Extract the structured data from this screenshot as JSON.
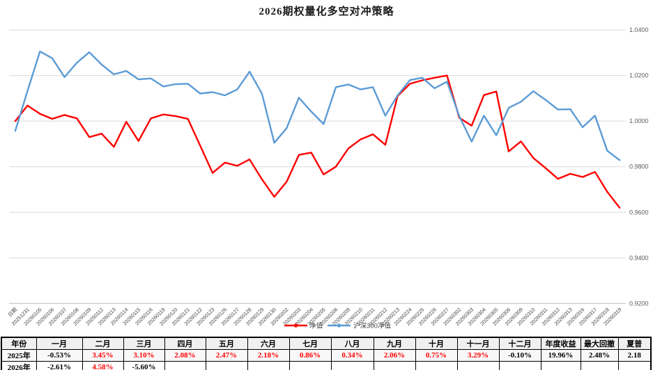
{
  "title": "2026期权量化多空对冲策略",
  "chart_data": {
    "type": "line",
    "grid": true,
    "legend_position": "bottom-center",
    "categories": [
      "日期",
      "20251231",
      "20260105",
      "20260106",
      "20260107",
      "20260108",
      "20260109",
      "20260112",
      "20260113",
      "20260114",
      "20260115",
      "20260116",
      "20260119",
      "20260120",
      "20260121",
      "20260122",
      "20260123",
      "20260126",
      "20260127",
      "20260128",
      "20260129",
      "20260130",
      "20260202",
      "20260203",
      "20260204",
      "20260205",
      "20260206",
      "20260209",
      "20260210",
      "20260211",
      "20260212",
      "20260213",
      "20260224",
      "20260225",
      "20260226",
      "20260227",
      "20260302",
      "20260303",
      "20260304",
      "20260305",
      "20260306",
      "20260309",
      "20260310",
      "20260311",
      "20260312",
      "20260313",
      "20260316",
      "20260317",
      "20260318",
      "20260319"
    ],
    "y_axis": {
      "min": 0.92,
      "max": 1.04,
      "step": 0.02,
      "tick_labels": [
        "1.0400",
        "1.0200",
        "1.0000",
        "0.9800",
        "0.9600",
        "0.9400",
        "0.9200"
      ]
    },
    "series": [
      {
        "name": "净值",
        "color": "#fe0000",
        "values": [
          1.0,
          1.0068,
          1.0032,
          1.001,
          1.0027,
          1.0012,
          0.993,
          0.9945,
          0.9887,
          0.9997,
          0.9913,
          1.0012,
          1.0029,
          1.0022,
          1.001,
          0.9892,
          0.9773,
          0.9818,
          0.9804,
          0.9832,
          0.9745,
          0.9668,
          0.9734,
          0.9852,
          0.9862,
          0.9766,
          0.98,
          0.988,
          0.992,
          0.9942,
          0.9896,
          1.011,
          1.0164,
          1.0179,
          1.019,
          1.02,
          1.0015,
          0.998,
          1.0114,
          1.013,
          0.9867,
          0.9911,
          0.9838,
          0.9794,
          0.9747,
          0.9769,
          0.9755,
          0.9777,
          0.969,
          0.962
        ]
      },
      {
        "name": "沪深300净值",
        "color": "#5b9bd5",
        "values": [
          0.9957,
          1.0133,
          1.0305,
          1.0276,
          1.0193,
          1.0256,
          1.0302,
          1.0248,
          1.0205,
          1.022,
          1.0183,
          1.0187,
          1.0152,
          1.0162,
          1.0164,
          1.0121,
          1.0127,
          1.0113,
          1.0139,
          1.0217,
          1.0121,
          0.9905,
          0.9969,
          1.0103,
          1.0042,
          0.9987,
          1.0149,
          1.0161,
          1.0139,
          1.0149,
          1.0024,
          1.0113,
          1.018,
          1.019,
          1.0144,
          1.0173,
          1.0022,
          0.991,
          1.0024,
          0.9938,
          1.0058,
          1.0085,
          1.0131,
          1.0093,
          1.0051,
          1.0052,
          0.9973,
          1.0024,
          0.987,
          0.9829
        ]
      }
    ]
  },
  "table": {
    "headers": [
      "年份",
      "一月",
      "二月",
      "三月",
      "四月",
      "五月",
      "六月",
      "七月",
      "八月",
      "九月",
      "十月",
      "十一月",
      "十二月",
      "年度收益",
      "最大回撤",
      "夏普"
    ],
    "rows": [
      {
        "year": "2025年",
        "cells": [
          {
            "t": "-0.53%",
            "red": false
          },
          {
            "t": "3.45%",
            "red": true
          },
          {
            "t": "3.10%",
            "red": true
          },
          {
            "t": "2.08%",
            "red": true
          },
          {
            "t": "2.47%",
            "red": true
          },
          {
            "t": "2.18%",
            "red": true
          },
          {
            "t": "0.86%",
            "red": true
          },
          {
            "t": "0.34%",
            "red": true
          },
          {
            "t": "2.06%",
            "red": true
          },
          {
            "t": "0.75%",
            "red": true
          },
          {
            "t": "3.29%",
            "red": true
          },
          {
            "t": "-0.10%",
            "red": false
          },
          {
            "t": "19.96%",
            "red": false
          },
          {
            "t": "2.48%",
            "red": false
          },
          {
            "t": "2.18",
            "red": false
          }
        ]
      },
      {
        "year": "2026年",
        "cells": [
          {
            "t": "-2.61%",
            "red": false
          },
          {
            "t": "4.58%",
            "red": true
          },
          {
            "t": "-5.60%",
            "red": false
          },
          {
            "t": "",
            "red": false
          },
          {
            "t": "",
            "red": false
          },
          {
            "t": "",
            "red": false
          },
          {
            "t": "",
            "red": false
          },
          {
            "t": "",
            "red": false
          },
          {
            "t": "",
            "red": false
          },
          {
            "t": "",
            "red": false
          },
          {
            "t": "",
            "red": false
          },
          {
            "t": "",
            "red": false
          },
          {
            "t": "",
            "red": false
          },
          {
            "t": "",
            "red": false
          },
          {
            "t": "",
            "red": false
          }
        ]
      }
    ]
  }
}
